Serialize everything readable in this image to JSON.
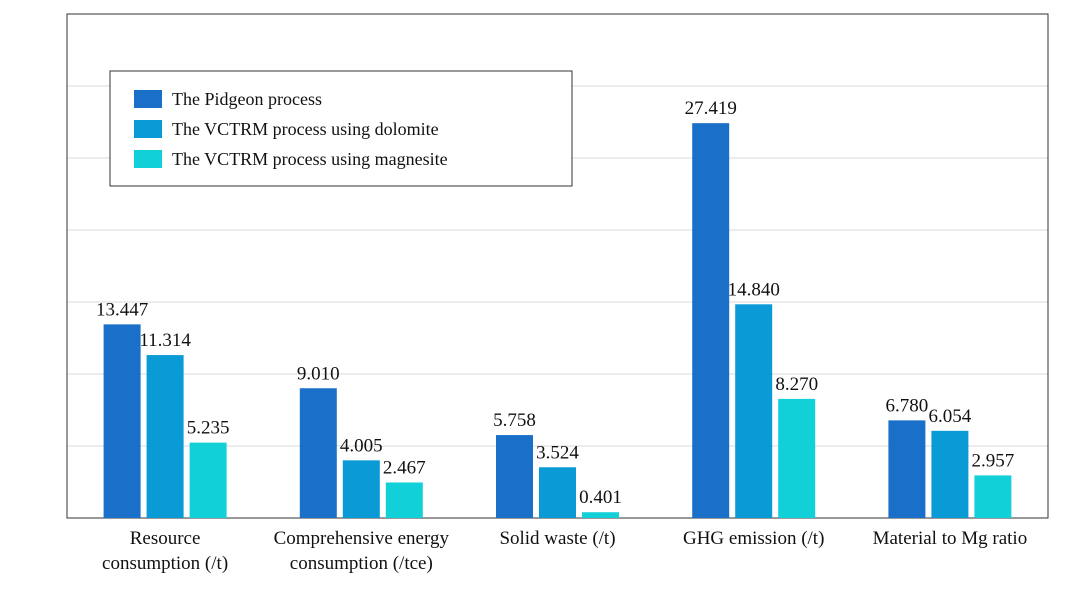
{
  "chart_data": {
    "type": "bar",
    "title": "",
    "xlabel": "",
    "ylabel": "",
    "ylim": [
      0,
      35
    ],
    "grid": true,
    "legend_position": "top-left",
    "categories": [
      [
        "Resource",
        "consumption (/t)"
      ],
      [
        "Comprehensive energy",
        "consumption (/tce)"
      ],
      [
        "Solid waste (/t)"
      ],
      [
        "GHG emission (/t)"
      ],
      [
        "Material to Mg ratio"
      ]
    ],
    "series": [
      {
        "name": "The Pidgeon process",
        "color": "#1a6fc9",
        "values": [
          13.447,
          9.01,
          5.758,
          27.419,
          6.78
        ],
        "labels": [
          "13.447",
          "9.010",
          "5.758",
          "27.419",
          "6.780"
        ]
      },
      {
        "name": "The VCTRM process using dolomite",
        "color": "#0a9ad6",
        "values": [
          11.314,
          4.005,
          3.524,
          14.84,
          6.054
        ],
        "labels": [
          "11.314",
          "4.005",
          "3.524",
          "14.840",
          "6.054"
        ]
      },
      {
        "name": "The VCTRM process using magnesite",
        "color": "#12d0d8",
        "values": [
          5.235,
          2.467,
          0.401,
          8.27,
          2.957
        ],
        "labels": [
          "5.235",
          "2.467",
          "0.401",
          "8.270",
          "2.957"
        ]
      }
    ]
  }
}
